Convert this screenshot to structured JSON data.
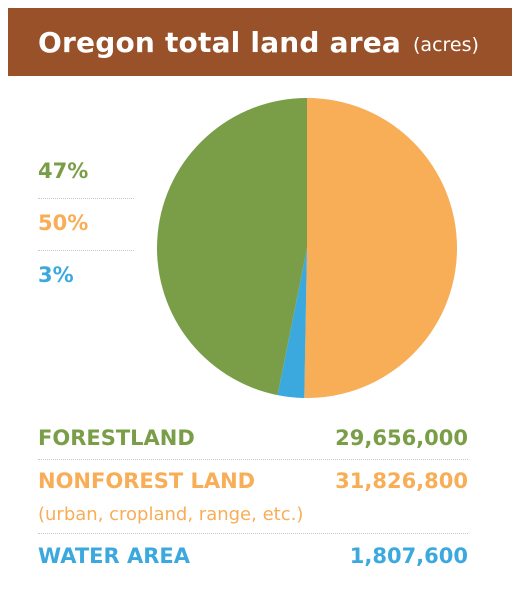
{
  "header": {
    "title": "Oregon total land area",
    "unit": "(acres)"
  },
  "colors": {
    "banner": "#99512a",
    "forest": "#7a9e48",
    "nonforest": "#f8ad57",
    "water": "#3ba9de"
  },
  "chart_data": {
    "type": "pie",
    "title": "Oregon total land area",
    "unit": "(acres)",
    "slices": [
      {
        "label": "NONFOREST LAND",
        "percent_label": "50%",
        "value": 31826800,
        "color": "#f8ad57"
      },
      {
        "label": "WATER AREA",
        "percent_label": "3%",
        "value": 1807600,
        "color": "#3ba9de"
      },
      {
        "label": "FORESTLAND",
        "percent_label": "47%",
        "value": 29656000,
        "color": "#7a9e48"
      }
    ]
  },
  "legend": {
    "percentages": [
      "47%",
      "50%",
      "3%"
    ],
    "rows": [
      {
        "label": "FORESTLAND",
        "value_text": "29,656,000"
      },
      {
        "label": "NONFOREST LAND",
        "value_text": "31,826,800",
        "note": "(urban, cropland, range, etc.)"
      },
      {
        "label": "WATER AREA",
        "value_text": "1,807,600"
      }
    ]
  }
}
